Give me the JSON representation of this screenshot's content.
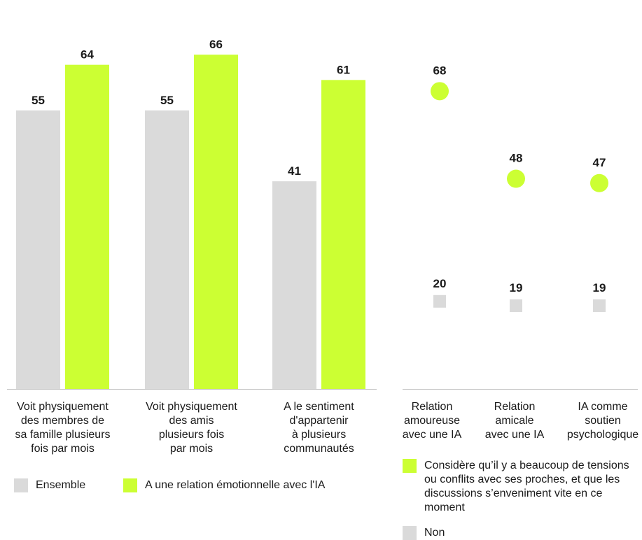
{
  "colors": {
    "green": "#ccff33",
    "grey": "#dadada",
    "axis": "#bfbfbf",
    "text": "#1a1a1a"
  },
  "chart_data": [
    {
      "type": "bar",
      "categories": [
        [
          "Voit physiquement",
          "des membres de",
          "sa famille plusieurs",
          "fois par mois"
        ],
        [
          "Voit physiquement",
          "des amis",
          "plusieurs fois",
          "par mois"
        ],
        [
          "A le sentiment",
          "d'appartenir",
          "à plusieurs",
          "communautés"
        ]
      ],
      "series": [
        {
          "name": "Ensemble",
          "values": [
            55,
            55,
            41
          ],
          "color": "#dadada"
        },
        {
          "name": "A une relation émotionnelle avec l'IA",
          "values": [
            64,
            66,
            61
          ],
          "color": "#ccff33"
        }
      ],
      "ylim": [
        0,
        70
      ],
      "grid": false,
      "legend_placement": "bottom"
    },
    {
      "type": "scatter",
      "categories": [
        [
          "Relation",
          "amoureuse",
          "avec une IA"
        ],
        [
          "Relation",
          "amicale",
          "avec une IA"
        ],
        [
          "IA comme",
          "soutien",
          "psychologique"
        ]
      ],
      "series": [
        {
          "name": "Considère qu’il y a beaucoup de tensions ou conflits avec ses proches, et que les discussions s’enveniment vite en ce moment",
          "values": [
            68,
            48,
            47
          ],
          "color": "#ccff33",
          "marker": "circle"
        },
        {
          "name": "Non",
          "values": [
            20,
            19,
            19
          ],
          "color": "#dadada",
          "marker": "square"
        }
      ],
      "ylim": [
        0,
        86
      ],
      "grid": false,
      "legend_placement": "bottom"
    }
  ]
}
